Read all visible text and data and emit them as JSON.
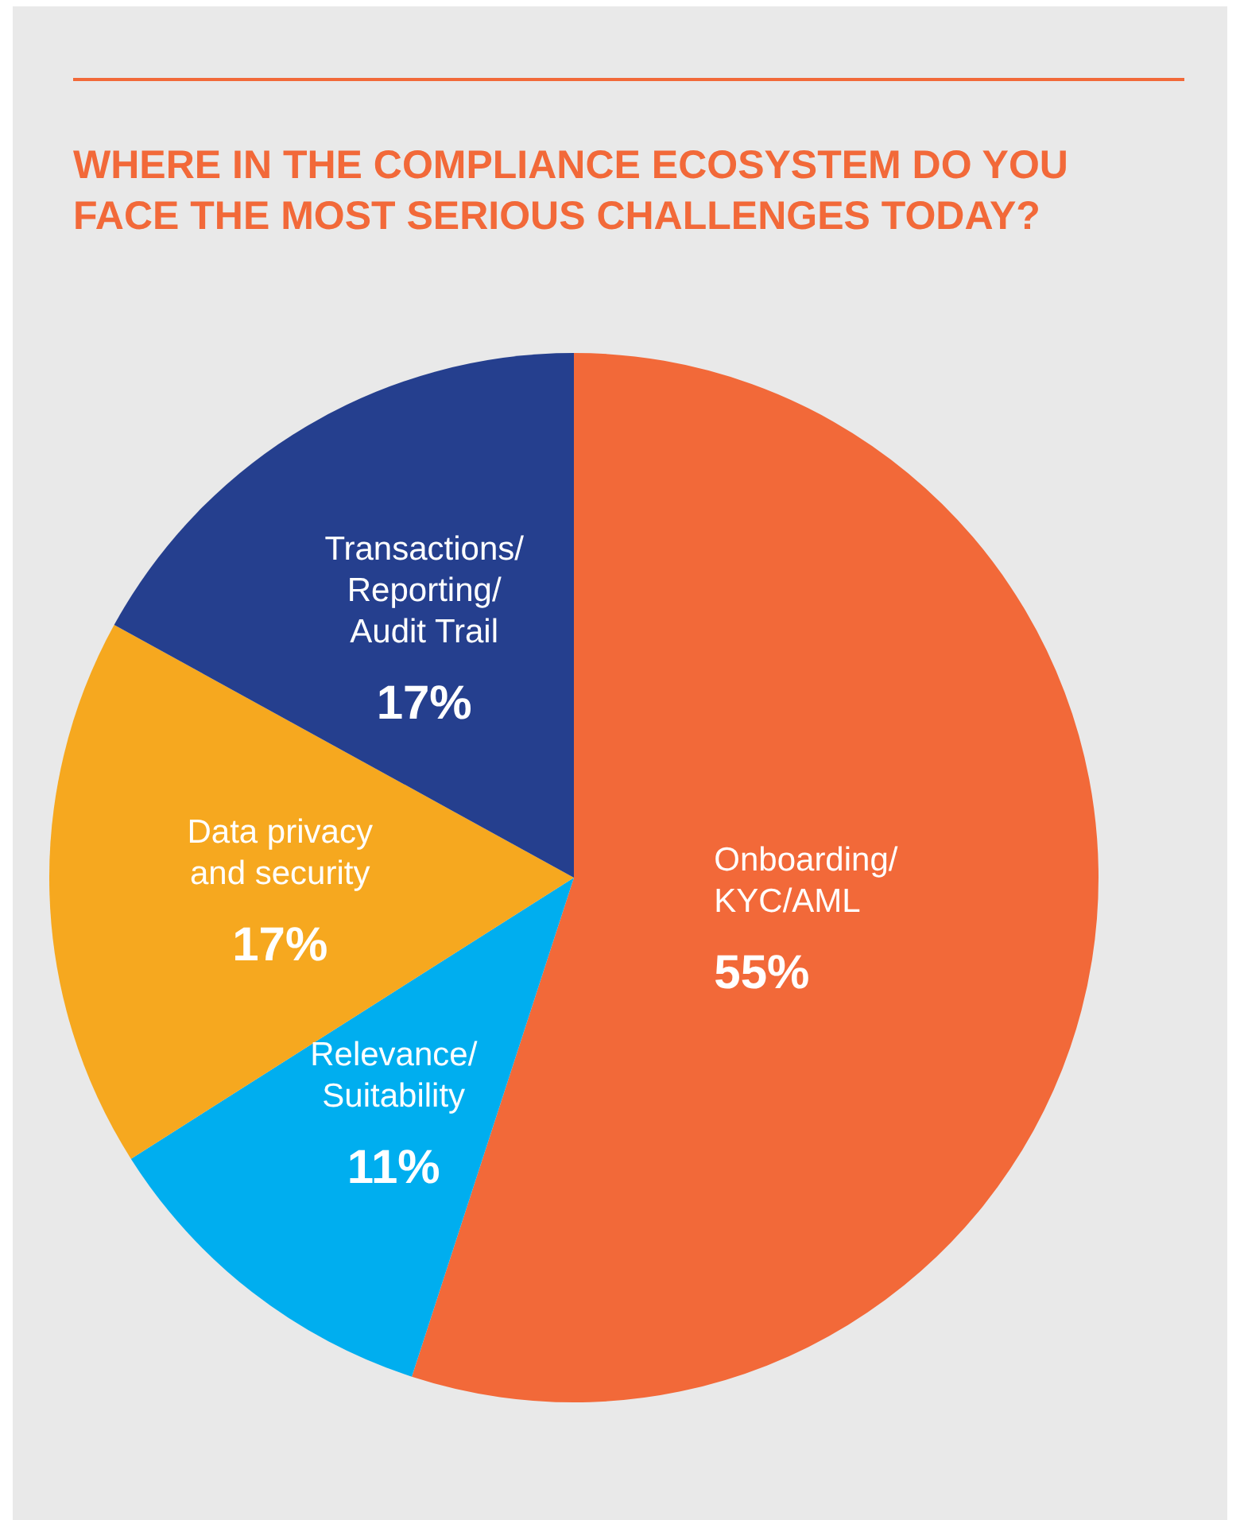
{
  "chart_data": {
    "type": "pie",
    "title": "WHERE IN THE COMPLIANCE ECOSYSTEM DO YOU FACE THE MOST SERIOUS CHALLENGES TODAY?",
    "categories": [
      "Onboarding/\nKYC/AML",
      "Relevance/\nSuitability",
      "Data privacy\nand security",
      "Transactions/\nReporting/\nAudit Trail"
    ],
    "values": [
      55,
      11,
      17,
      17
    ],
    "colors": [
      "#f26939",
      "#00aeef",
      "#f6a81f",
      "#253f8e"
    ],
    "value_labels": [
      "55%",
      "11%",
      "17%",
      "17%"
    ],
    "legend": false
  }
}
